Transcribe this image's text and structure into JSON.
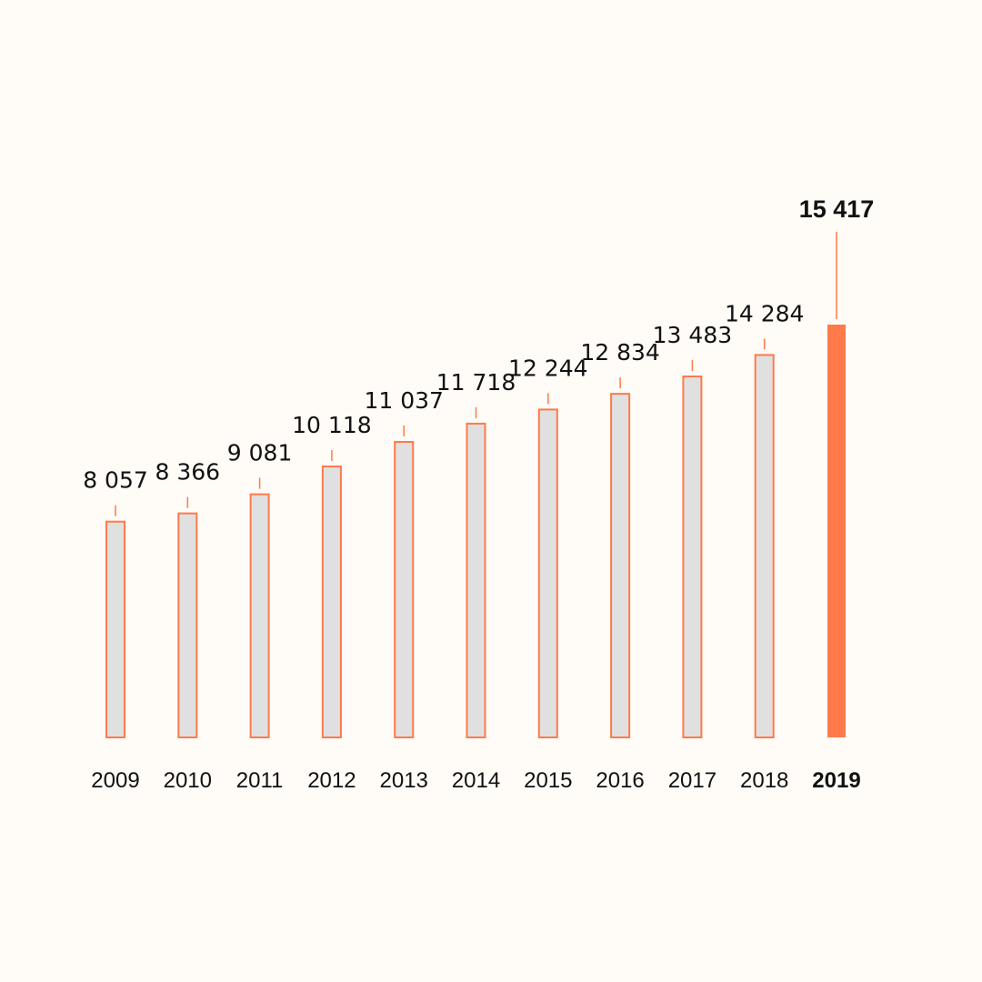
{
  "colors": {
    "background": "#fffbf6",
    "bar_fill": "#e0e0e0",
    "accent": "#ff7a4a",
    "text": "#111111"
  },
  "chart_data": {
    "type": "bar",
    "title": "",
    "xlabel": "",
    "ylabel": "",
    "categories": [
      "2009",
      "2010",
      "2011",
      "2012",
      "2013",
      "2014",
      "2015",
      "2016",
      "2017",
      "2018",
      "2019"
    ],
    "values": [
      8057,
      8366,
      9081,
      10118,
      11037,
      11718,
      12244,
      12834,
      13483,
      14284,
      15417
    ],
    "value_labels": [
      "8 057",
      "8 366",
      "9 081",
      "10 118",
      "11 037",
      "11 718",
      "12 244",
      "12 834",
      "13 483",
      "14 284",
      "15 417"
    ],
    "highlight_category": "2019",
    "ylim": [
      0,
      15417
    ],
    "grid": false,
    "legend": "none"
  }
}
